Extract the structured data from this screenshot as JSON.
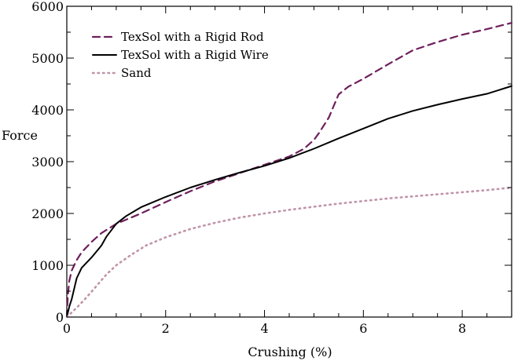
{
  "chart_data": {
    "type": "line",
    "title": "",
    "xlabel": "Crushing (%)",
    "ylabel": "Force",
    "xlim": [
      0,
      9
    ],
    "ylim": [
      0,
      6000
    ],
    "x_ticks": [
      0,
      2,
      4,
      6,
      8
    ],
    "x_minor_step": 0.5,
    "y_ticks": [
      0,
      1000,
      2000,
      3000,
      4000,
      5000,
      6000
    ],
    "y_minor_step": 500,
    "grid": false,
    "legend_position": "top-left",
    "series": [
      {
        "name": "TexSol with a Rigid Rod",
        "style": "dashed",
        "color": "#6e1f5c",
        "x": [
          0,
          0.02,
          0.05,
          0.1,
          0.2,
          0.3,
          0.5,
          0.7,
          1.0,
          1.5,
          2.0,
          2.5,
          3.0,
          3.5,
          4.0,
          4.5,
          4.8,
          5.0,
          5.1,
          5.3,
          5.5,
          5.7,
          6.0,
          6.5,
          7.0,
          7.5,
          8.0,
          8.5,
          9.0
        ],
        "y": [
          0,
          400,
          700,
          900,
          1100,
          1250,
          1450,
          1620,
          1800,
          2000,
          2220,
          2430,
          2620,
          2780,
          2940,
          3100,
          3250,
          3420,
          3550,
          3850,
          4300,
          4450,
          4600,
          4880,
          5150,
          5310,
          5450,
          5560,
          5680
        ]
      },
      {
        "name": "TexSol with a Rigid Wire",
        "style": "solid",
        "color": "#000000",
        "x": [
          0,
          0.05,
          0.1,
          0.15,
          0.2,
          0.3,
          0.5,
          0.7,
          0.8,
          1.0,
          1.2,
          1.5,
          2.0,
          2.5,
          3.0,
          3.5,
          4.0,
          4.5,
          5.0,
          5.5,
          6.0,
          6.5,
          7.0,
          7.5,
          8.0,
          8.5,
          9.0
        ],
        "y": [
          0,
          200,
          350,
          550,
          750,
          950,
          1150,
          1380,
          1550,
          1800,
          1950,
          2120,
          2320,
          2500,
          2650,
          2790,
          2920,
          3070,
          3250,
          3450,
          3640,
          3830,
          3980,
          4100,
          4210,
          4310,
          4460
        ]
      },
      {
        "name": "Sand",
        "style": "dotted",
        "color": "#c094a8",
        "x": [
          0,
          0.2,
          0.4,
          0.6,
          0.8,
          1.0,
          1.3,
          1.6,
          2.0,
          2.5,
          3.0,
          3.5,
          4.0,
          4.5,
          5.0,
          5.5,
          6.0,
          6.5,
          7.0,
          7.5,
          8.0,
          8.5,
          9.0
        ],
        "y": [
          0,
          180,
          380,
          600,
          820,
          1000,
          1200,
          1380,
          1540,
          1700,
          1820,
          1920,
          2000,
          2070,
          2130,
          2190,
          2240,
          2290,
          2330,
          2370,
          2410,
          2450,
          2500
        ]
      }
    ]
  }
}
